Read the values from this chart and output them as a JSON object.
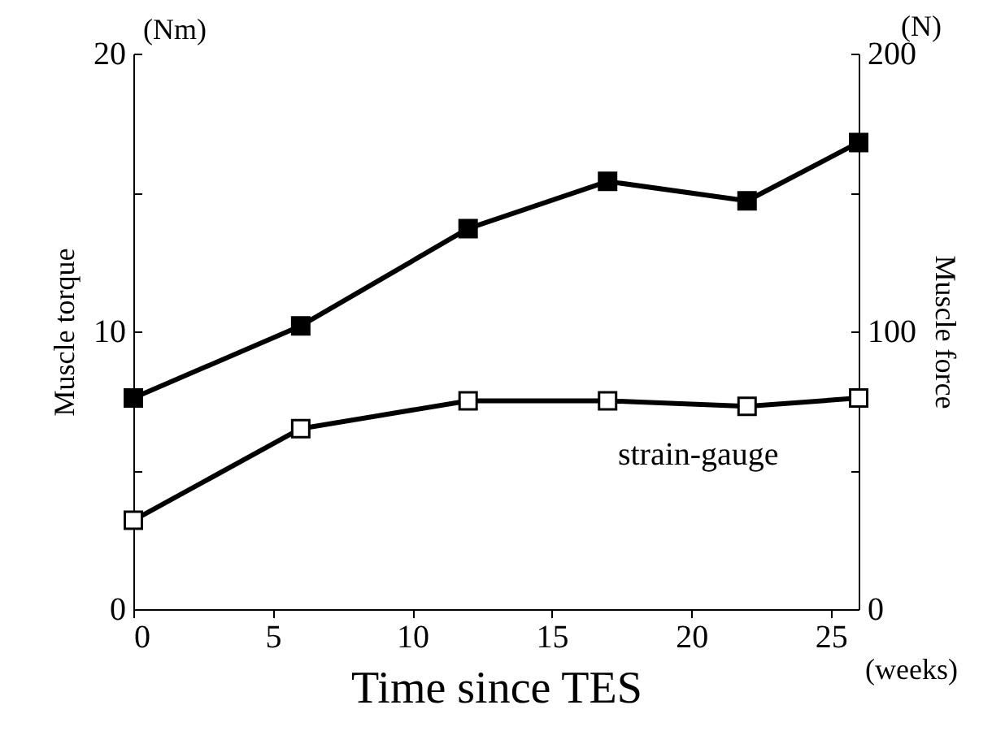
{
  "chart_data": {
    "type": "line",
    "xlabel": "Time since TES",
    "ylabel": "Muscle torque",
    "y2label": "Muscle force",
    "annotations": [
      "(Nm)",
      "(N)",
      "(weeks)"
    ],
    "x": [
      0,
      6,
      12,
      17,
      22,
      26
    ],
    "series": [
      {
        "color": "#000000",
        "values": [
          7.6,
          10.2,
          13.7,
          15.4,
          14.7,
          16.8
        ]
      },
      {
        "name": "strain-gauge",
        "color": "#000000",
        "axis": "y2",
        "values": [
          32,
          65,
          75,
          75,
          73,
          76
        ]
      }
    ],
    "xlim": [
      0,
      26
    ],
    "xticks": [
      0,
      5,
      10,
      15,
      20,
      25
    ],
    "ylim": [
      0,
      20
    ],
    "yticks": [
      0,
      {
        "value": 5,
        "label": null
      },
      10,
      {
        "value": 15,
        "label": null
      },
      20
    ],
    "y2lim": [
      0,
      200
    ],
    "y2ticks": [
      0,
      {
        "value": 50,
        "label": null
      },
      100,
      {
        "value": 150,
        "label": null
      },
      200
    ],
    "marker": "square",
    "line_style": "solid",
    "grid": false
  }
}
